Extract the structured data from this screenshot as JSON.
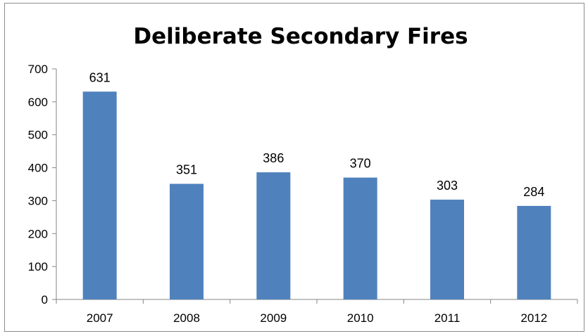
{
  "chart_data": {
    "type": "bar",
    "title": "Deliberate Secondary Fires",
    "categories": [
      "2007",
      "2008",
      "2009",
      "2010",
      "2011",
      "2012"
    ],
    "values": [
      631,
      351,
      386,
      370,
      303,
      284
    ],
    "data_labels": [
      "631",
      "351",
      "386",
      "370",
      "303",
      "284"
    ],
    "ylim": [
      0,
      700
    ],
    "yticks": [
      0,
      100,
      200,
      300,
      400,
      500,
      600,
      700
    ],
    "xlabel": "",
    "ylabel": "",
    "grid": false,
    "legend": "none",
    "bar_color": "#4f81bd"
  }
}
